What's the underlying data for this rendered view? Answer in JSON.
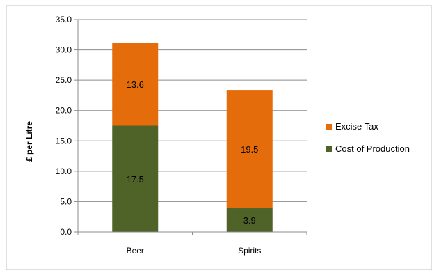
{
  "chart_data": {
    "type": "bar",
    "stacked": true,
    "categories": [
      "Beer",
      "Spirits"
    ],
    "series": [
      {
        "name": "Cost of Production",
        "values": [
          17.5,
          3.9
        ],
        "color": "#4f6228"
      },
      {
        "name": "Excise Tax",
        "values": [
          13.6,
          19.5
        ],
        "color": "#e46c0a"
      }
    ],
    "data_labels": true,
    "title": "",
    "xlabel": "",
    "ylabel": "£ per Litre",
    "ylim": [
      0,
      35
    ],
    "yticks": [
      "0.0",
      "5.0",
      "10.0",
      "15.0",
      "20.0",
      "25.0",
      "30.0",
      "35.0"
    ],
    "grid": true,
    "legend_position": "right"
  }
}
